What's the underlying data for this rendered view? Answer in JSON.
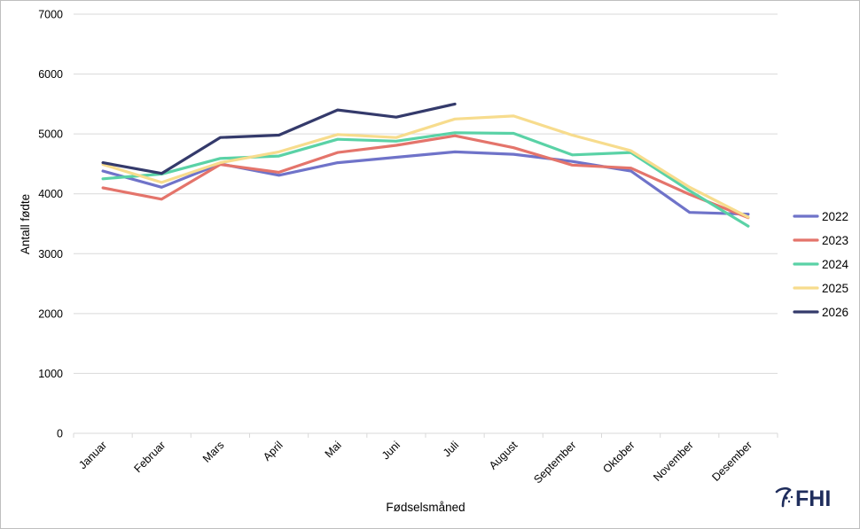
{
  "chart_data": {
    "type": "line",
    "xlabel": "Fødselsmåned",
    "ylabel": "Antall fødte",
    "ylim": [
      0,
      7000
    ],
    "yticks": [
      0,
      1000,
      2000,
      3000,
      4000,
      5000,
      6000,
      7000
    ],
    "grid": "horizontal",
    "legend_position": "right",
    "categories": [
      "Januar",
      "Februar",
      "Mars",
      "April",
      "Mai",
      "Juni",
      "Juli",
      "August",
      "September",
      "Oktober",
      "November",
      "Desember"
    ],
    "series": [
      {
        "name": "2022",
        "color": "#6f73c9",
        "values": [
          4380,
          4110,
          4500,
          4310,
          4520,
          4610,
          4700,
          4660,
          4540,
          4380,
          3690,
          3660
        ]
      },
      {
        "name": "2023",
        "color": "#e4746b",
        "values": [
          4100,
          3910,
          4490,
          4360,
          4690,
          4810,
          4970,
          4770,
          4480,
          4430,
          3990,
          3600
        ]
      },
      {
        "name": "2024",
        "color": "#5ad2a6",
        "values": [
          4250,
          4330,
          4590,
          4630,
          4910,
          4880,
          5020,
          5010,
          4650,
          4690,
          4050,
          3460
        ]
      },
      {
        "name": "2025",
        "color": "#f7dc8d",
        "values": [
          4490,
          4190,
          4520,
          4700,
          4990,
          4940,
          5250,
          5300,
          4980,
          4720,
          4110,
          3610
        ]
      },
      {
        "name": "2026",
        "color": "#343a6b",
        "values": [
          4520,
          4340,
          4940,
          4980,
          5400,
          5280,
          5500,
          null,
          null,
          null,
          null,
          null
        ]
      }
    ]
  },
  "logo": {
    "text": "FHI",
    "color": "#1f2d5c"
  }
}
